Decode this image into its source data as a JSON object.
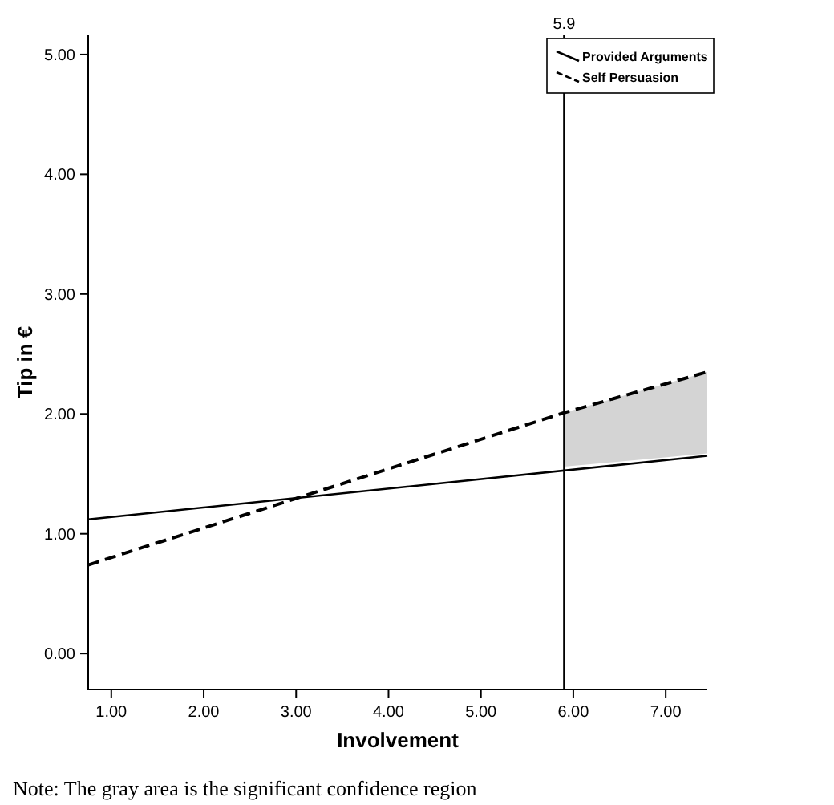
{
  "chart_data": {
    "type": "line",
    "xlabel": "Involvement",
    "ylabel": "Tip in €",
    "xlim": [
      0.75,
      7.45
    ],
    "ylim": [
      -0.3,
      5.16
    ],
    "xticks": [
      {
        "value": 1,
        "label": "1.00"
      },
      {
        "value": 2,
        "label": "2.00"
      },
      {
        "value": 3,
        "label": "3.00"
      },
      {
        "value": 4,
        "label": "4.00"
      },
      {
        "value": 5,
        "label": "5.00"
      },
      {
        "value": 6,
        "label": "6.00"
      },
      {
        "value": 7,
        "label": "7.00"
      }
    ],
    "yticks": [
      {
        "value": 0,
        "label": "0.00"
      },
      {
        "value": 1,
        "label": "1.00"
      },
      {
        "value": 2,
        "label": "2.00"
      },
      {
        "value": 3,
        "label": "3.00"
      },
      {
        "value": 4,
        "label": "4.00"
      },
      {
        "value": 5,
        "label": "5.00"
      }
    ],
    "series": [
      {
        "name": "Provided Arguments",
        "color": "#000000",
        "line_style": "solid",
        "x": [
          0.75,
          7.45
        ],
        "values": [
          1.12,
          1.65
        ]
      },
      {
        "name": "Self Persuasion",
        "color": "#000000",
        "line_style": "dashed",
        "x": [
          0.75,
          5.9,
          7.45
        ],
        "values": [
          0.74,
          2.01,
          2.35
        ],
        "lower": [
          null,
          1.56,
          1.67
        ],
        "upper": [
          null,
          2.01,
          2.35
        ]
      }
    ],
    "ref_lines": [
      {
        "axis": "x",
        "value": 5.9,
        "label": "5.9",
        "color": "#000000"
      }
    ],
    "legend": "top right",
    "annotations": [
      "Note: The gray area is the significant confidence region"
    ]
  }
}
